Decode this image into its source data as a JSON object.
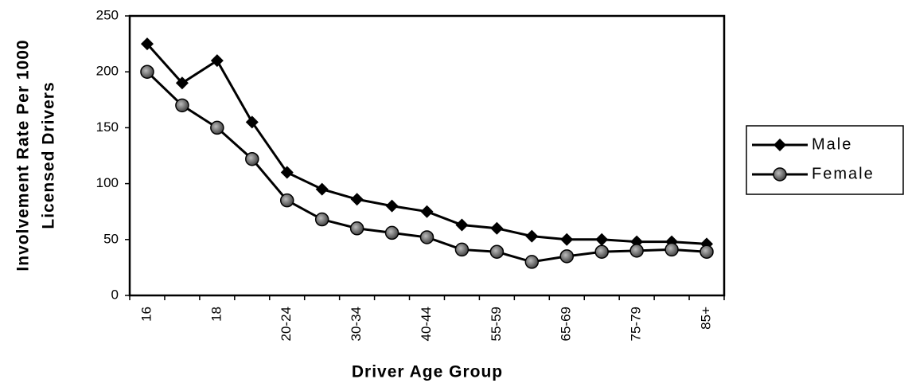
{
  "chart_data": {
    "type": "line",
    "x_label": "Driver Age Group",
    "y_label": [
      "Involvement Rate Per 1000",
      "Licensed Drivers"
    ],
    "categories": [
      "16",
      null,
      "18",
      null,
      "20-24",
      null,
      "30-34",
      null,
      "40-44",
      null,
      "55-59",
      null,
      "65-69",
      null,
      "75-79",
      null,
      "85+"
    ],
    "series": [
      {
        "name": "Male",
        "color": "#000000",
        "marker": "diamond",
        "values": [
          225,
          190,
          210,
          155,
          110,
          95,
          86,
          80,
          75,
          63,
          60,
          53,
          50,
          50,
          48,
          48,
          46
        ]
      },
      {
        "name": "Female",
        "color": "#000000",
        "marker": "circle",
        "values": [
          200,
          170,
          150,
          122,
          85,
          68,
          60,
          56,
          52,
          41,
          39,
          30,
          35,
          39,
          40,
          41,
          39
        ]
      }
    ],
    "ylim": [
      0,
      250
    ],
    "yticks": [
      0,
      50,
      100,
      150,
      200,
      250
    ],
    "grid": false,
    "legend": "right"
  }
}
